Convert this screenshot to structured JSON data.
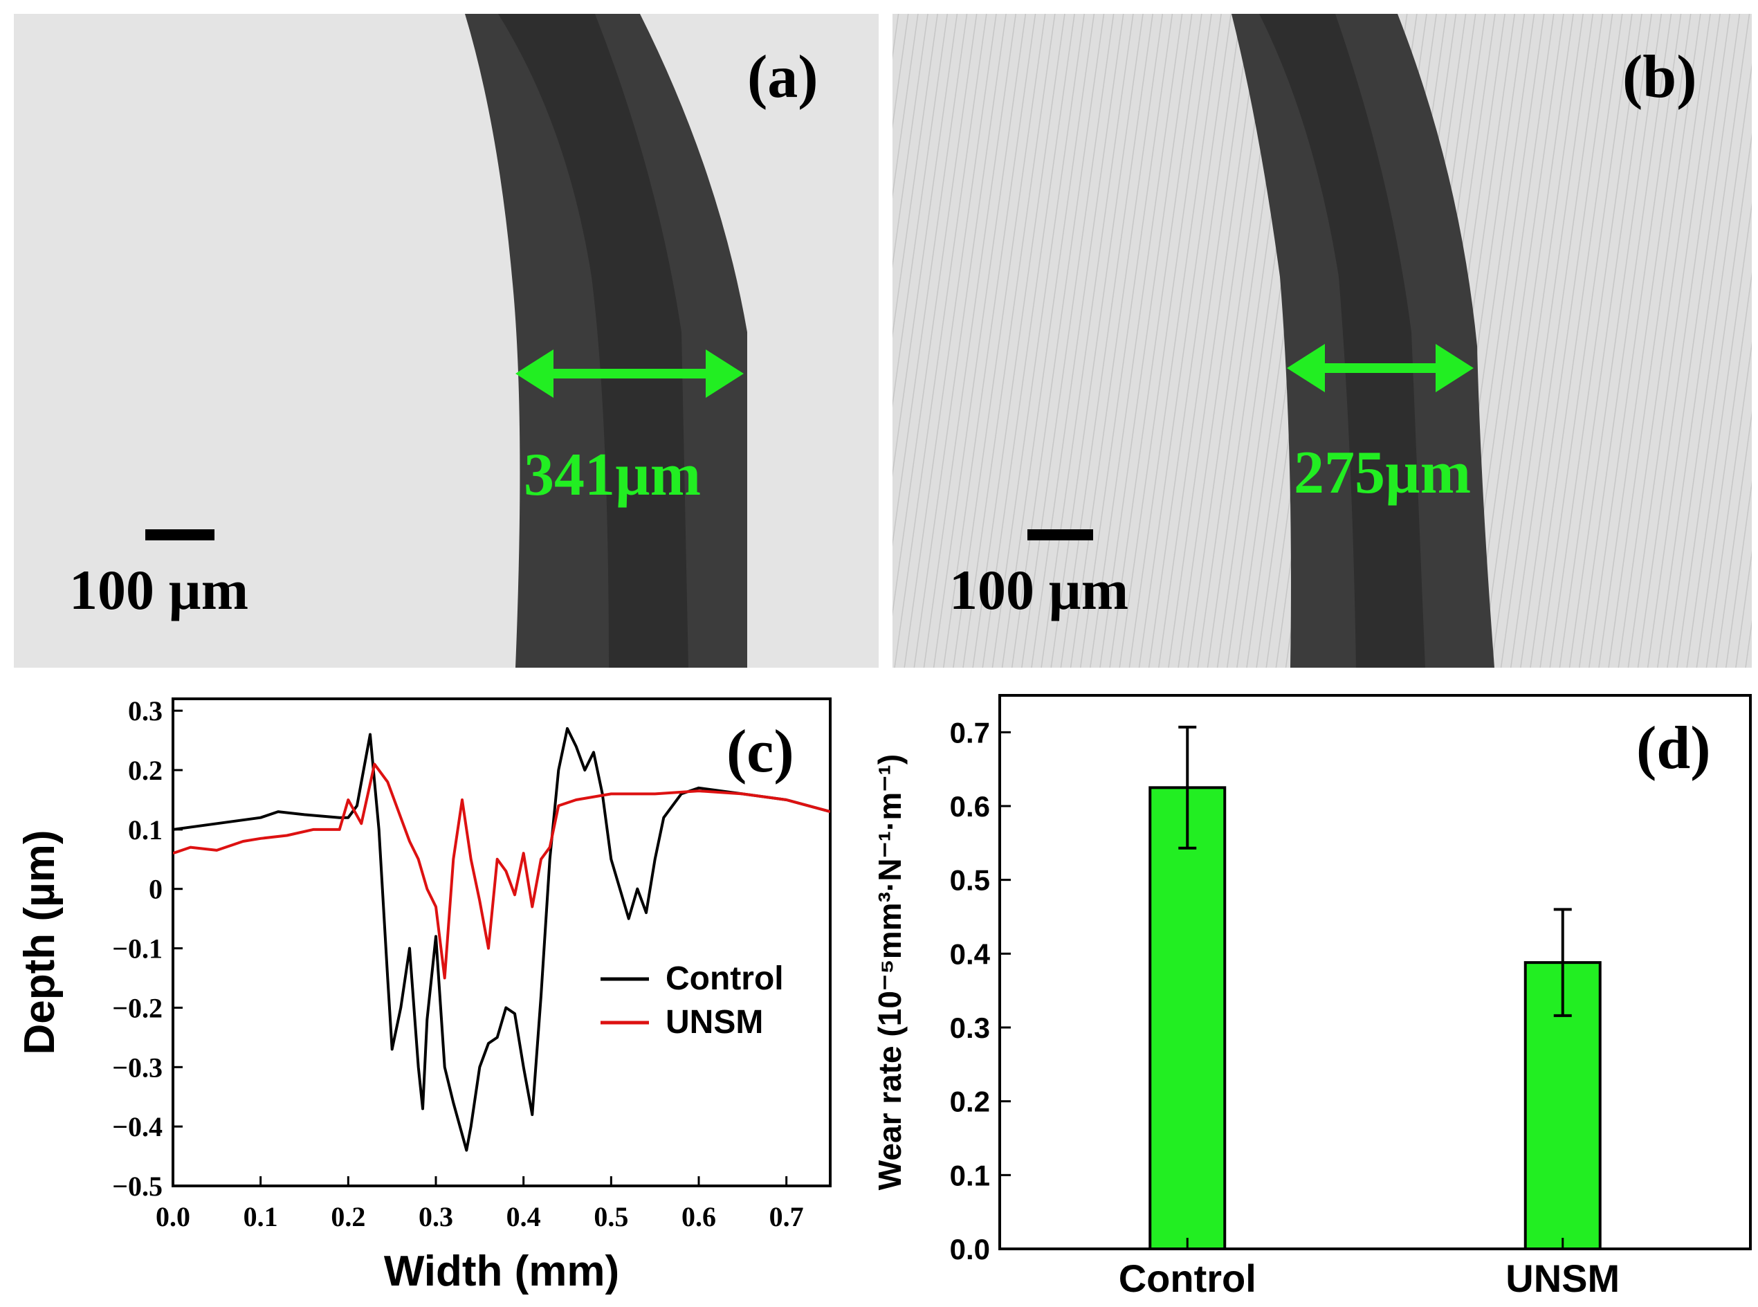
{
  "panel_a": {
    "label": "(a)",
    "width_label": "341µm",
    "scale_label": "100 µm"
  },
  "panel_b": {
    "label": "(b)",
    "width_label": "275µm",
    "scale_label": "100 µm"
  },
  "colors": {
    "annotation": "#22ee22",
    "control": "#000000",
    "unsm": "#dd1111",
    "bar_fill": "#22ee22",
    "micrograph_bg_a": "#e4e4e4",
    "micrograph_bg_b": "#dcdcdc",
    "wear_track": "#3c3c3c"
  },
  "chart_data": [
    {
      "type": "line",
      "panel_label": "(c)",
      "title": "",
      "xlabel": "Width (mm)",
      "ylabel": "Depth (µm)",
      "xlim": [
        0.0,
        0.75
      ],
      "ylim": [
        -0.5,
        0.32
      ],
      "xticks": [
        "0.0",
        "0.1",
        "0.2",
        "0.3",
        "0.4",
        "0.5",
        "0.6",
        "0.7"
      ],
      "yticks": [
        "0.3",
        "0.2",
        "0.1",
        "0",
        "−0.1",
        "−0.2",
        "−0.3",
        "−0.4",
        "−0.5"
      ],
      "legend_position": "center-right",
      "series": [
        {
          "name": "Control",
          "x": [
            0.0,
            0.05,
            0.1,
            0.12,
            0.15,
            0.19,
            0.2,
            0.21,
            0.225,
            0.235,
            0.245,
            0.25,
            0.26,
            0.27,
            0.28,
            0.285,
            0.29,
            0.3,
            0.31,
            0.32,
            0.335,
            0.34,
            0.35,
            0.36,
            0.37,
            0.38,
            0.39,
            0.4,
            0.41,
            0.42,
            0.43,
            0.44,
            0.45,
            0.46,
            0.47,
            0.48,
            0.49,
            0.5,
            0.51,
            0.52,
            0.53,
            0.54,
            0.55,
            0.56,
            0.58,
            0.6,
            0.65,
            0.7,
            0.75
          ],
          "y": [
            0.1,
            0.11,
            0.12,
            0.13,
            0.125,
            0.12,
            0.12,
            0.14,
            0.26,
            0.1,
            -0.15,
            -0.27,
            -0.2,
            -0.1,
            -0.3,
            -0.37,
            -0.22,
            -0.08,
            -0.3,
            -0.36,
            -0.44,
            -0.4,
            -0.3,
            -0.26,
            -0.25,
            -0.2,
            -0.21,
            -0.3,
            -0.38,
            -0.18,
            0.05,
            0.2,
            0.27,
            0.24,
            0.2,
            0.23,
            0.16,
            0.05,
            0.0,
            -0.05,
            0.0,
            -0.04,
            0.05,
            0.12,
            0.16,
            0.17,
            0.16,
            0.15,
            0.13
          ]
        },
        {
          "name": "UNSM",
          "x": [
            0.0,
            0.02,
            0.05,
            0.08,
            0.1,
            0.13,
            0.16,
            0.19,
            0.2,
            0.215,
            0.23,
            0.245,
            0.26,
            0.27,
            0.28,
            0.29,
            0.3,
            0.31,
            0.32,
            0.33,
            0.34,
            0.35,
            0.36,
            0.37,
            0.38,
            0.39,
            0.4,
            0.41,
            0.42,
            0.43,
            0.44,
            0.46,
            0.5,
            0.55,
            0.6,
            0.65,
            0.7,
            0.75
          ],
          "y": [
            0.06,
            0.07,
            0.065,
            0.08,
            0.085,
            0.09,
            0.1,
            0.1,
            0.15,
            0.11,
            0.21,
            0.18,
            0.12,
            0.08,
            0.05,
            0.0,
            -0.03,
            -0.15,
            0.05,
            0.15,
            0.05,
            -0.02,
            -0.1,
            0.05,
            0.03,
            -0.01,
            0.06,
            -0.03,
            0.05,
            0.07,
            0.14,
            0.15,
            0.16,
            0.16,
            0.165,
            0.16,
            0.15,
            0.13
          ]
        }
      ]
    },
    {
      "type": "bar",
      "panel_label": "(d)",
      "title": "",
      "xlabel": "",
      "ylabel": "Wear rate (10⁻⁵mm³·N⁻¹·m⁻¹)",
      "ylim": [
        0.0,
        0.75
      ],
      "yticks": [
        "0.0",
        "0.1",
        "0.2",
        "0.3",
        "0.4",
        "0.5",
        "0.6",
        "0.7"
      ],
      "categories": [
        "Control",
        "UNSM"
      ],
      "values": [
        0.625,
        0.388
      ],
      "errors": [
        0.082,
        0.072
      ]
    }
  ]
}
